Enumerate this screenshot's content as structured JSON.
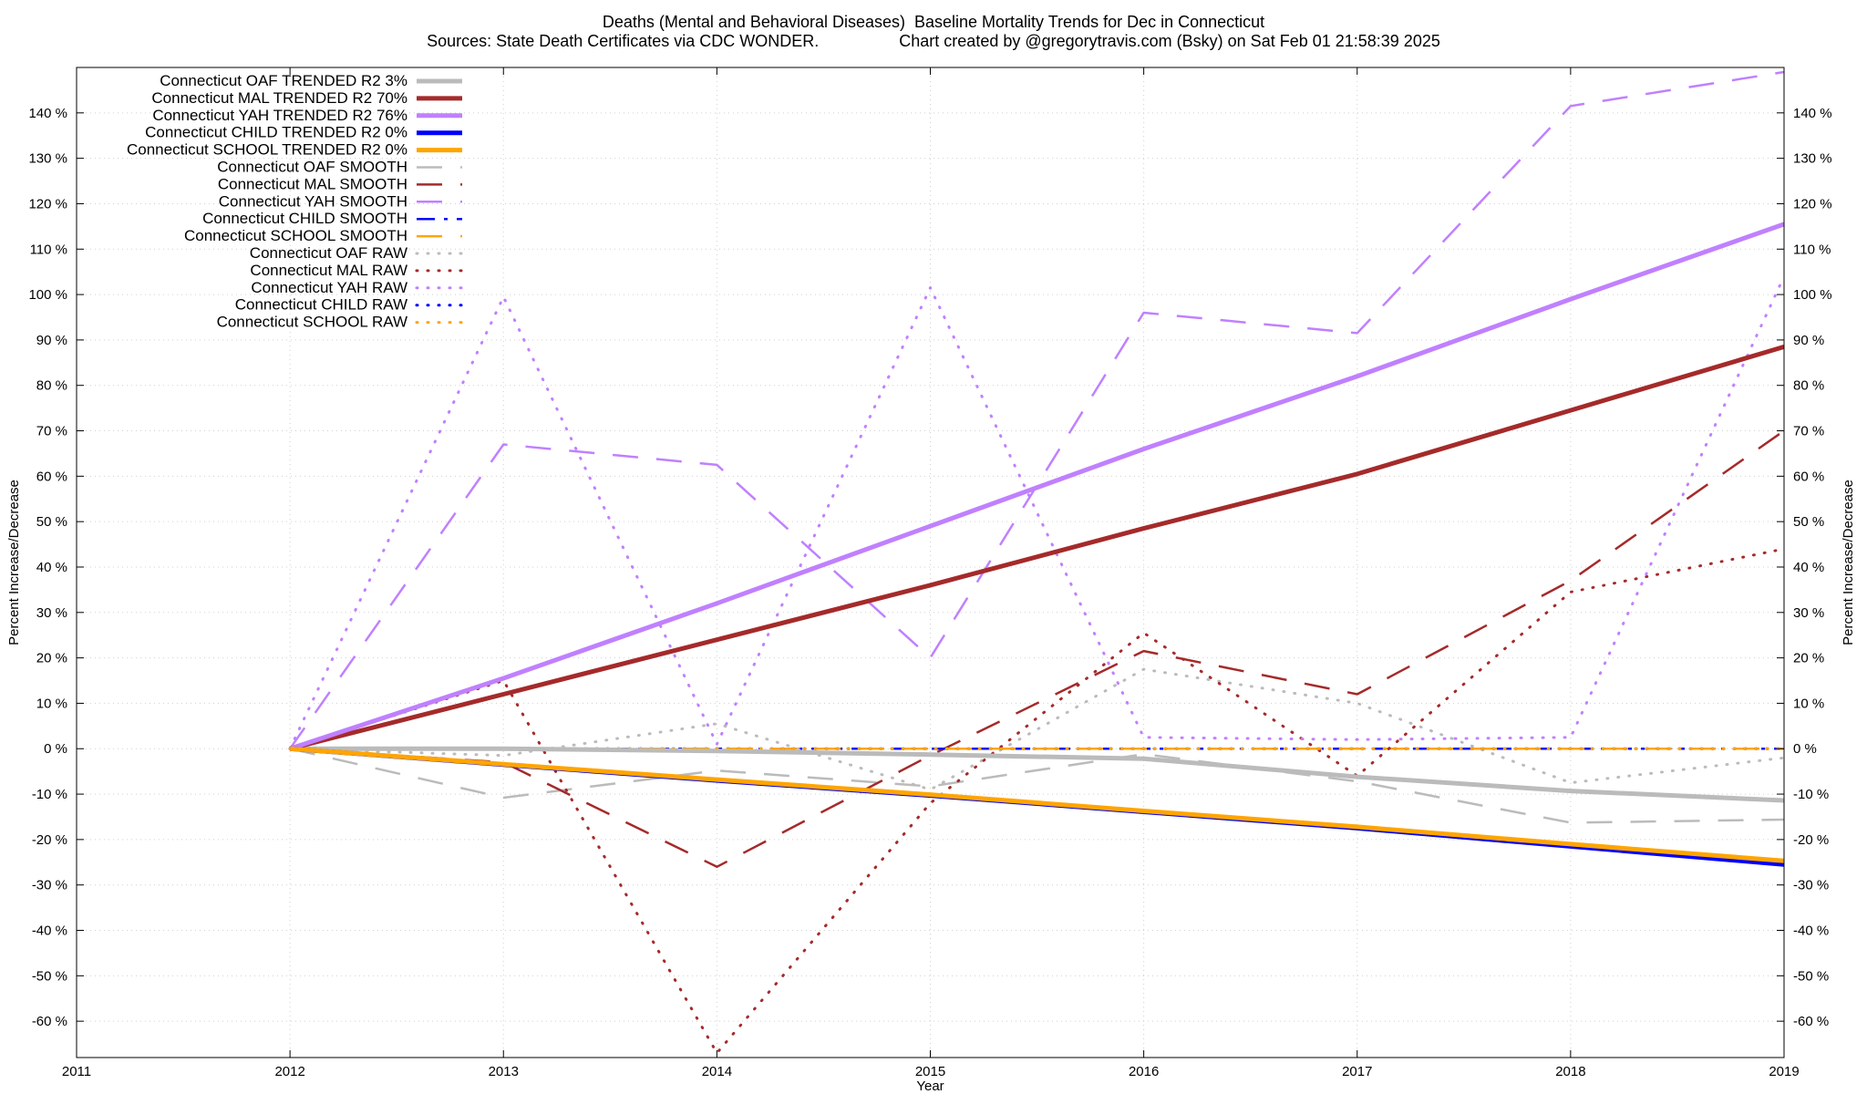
{
  "chart_data": {
    "type": "line",
    "title": "Deaths (Mental and Behavioral Diseases)  Baseline Mortality Trends for Dec in Connecticut",
    "subtitle": "Sources: State Death Certificates via CDC WONDER.",
    "credit": "Chart created by @gregorytravis.com (Bsky) on Sat Feb 01 21:58:39 2025",
    "xlabel": "Year",
    "ylabel": "Percent Increase/Decrease",
    "xlim": [
      2011,
      2019
    ],
    "ylim": [
      -68,
      150
    ],
    "x_ticks": [
      2011,
      2012,
      2013,
      2014,
      2015,
      2016,
      2017,
      2018,
      2019
    ],
    "x_tick_labels": [
      "2011",
      "2012",
      "2013",
      "2014",
      "2015",
      "2016",
      "2017",
      "2018",
      "2019"
    ],
    "y_ticks": [
      -60,
      -50,
      -40,
      -30,
      -20,
      -10,
      0,
      10,
      20,
      30,
      40,
      50,
      60,
      70,
      80,
      90,
      100,
      110,
      120,
      130,
      140
    ],
    "y_tick_labels": [
      "-60 %",
      "-50 %",
      "-40 %",
      "-30 %",
      "-20 %",
      "-10 %",
      "0 %",
      "10 %",
      "20 %",
      "30 %",
      "40 %",
      "50 %",
      "60 %",
      "70 %",
      "80 %",
      "90 %",
      "100 %",
      "110 %",
      "120 %",
      "130 %",
      "140 %"
    ],
    "grid": true,
    "legend_position": "top-left",
    "series": [
      {
        "name": "Connecticut OAF TRENDED R2  3%",
        "style": "solid",
        "color": "#bbbbbb",
        "x": [
          2012,
          2013,
          2014,
          2015,
          2016,
          2017,
          2018,
          2019
        ],
        "y": [
          0,
          0,
          -0.5,
          -1.3,
          -2.2,
          -6.2,
          -9.3,
          -11.4
        ]
      },
      {
        "name": "Connecticut MAL TRENDED R2  70%",
        "style": "solid",
        "color": "#a52a2a",
        "x": [
          2012,
          2013,
          2014,
          2015,
          2016,
          2017,
          2018,
          2019
        ],
        "y": [
          0,
          12,
          24,
          36,
          48.5,
          60.5,
          74.5,
          88.5
        ]
      },
      {
        "name": "Connecticut YAH TRENDED R2  76%",
        "style": "solid",
        "color": "#c080ff",
        "x": [
          2012,
          2013,
          2014,
          2015,
          2016,
          2017,
          2018,
          2019
        ],
        "y": [
          0,
          15.5,
          32,
          49,
          66,
          82,
          99,
          115.5
        ]
      },
      {
        "name": "Connecticut CHILD TRENDED R2   0%",
        "style": "solid",
        "color": "#0000ff",
        "x": [
          2012,
          2013,
          2014,
          2015,
          2016,
          2017,
          2018,
          2019
        ],
        "y": [
          0,
          -3.5,
          -7,
          -10.3,
          -13.9,
          -17.5,
          -21.5,
          -25.5
        ]
      },
      {
        "name": "Connecticut SCHOOL TRENDED R2   0%",
        "style": "solid",
        "color": "#ffa500",
        "x": [
          2012,
          2013,
          2014,
          2015,
          2016,
          2017,
          2018,
          2019
        ],
        "y": [
          0,
          -3.4,
          -6.8,
          -10.1,
          -13.7,
          -17.2,
          -21.0,
          -24.7
        ]
      },
      {
        "name": "Connecticut OAF SMOOTH",
        "style": "dash",
        "color": "#bbbbbb",
        "x": [
          2012,
          2013,
          2014,
          2015,
          2016,
          2017,
          2018,
          2019
        ],
        "y": [
          0,
          -10.8,
          -4.8,
          -8.3,
          -1.2,
          -7.2,
          -16.3,
          -15.6
        ]
      },
      {
        "name": "Connecticut MAL SMOOTH",
        "style": "dash",
        "color": "#a52a2a",
        "x": [
          2012,
          2013,
          2014,
          2015,
          2016,
          2017,
          2018,
          2019
        ],
        "y": [
          0,
          -3,
          -26,
          -1.5,
          21.5,
          12,
          37,
          70
        ]
      },
      {
        "name": "Connecticut YAH SMOOTH",
        "style": "dash",
        "color": "#c080ff",
        "x": [
          2012,
          2013,
          2014,
          2015,
          2016,
          2017,
          2018,
          2019
        ],
        "y": [
          0,
          67,
          62.5,
          20,
          96,
          91.5,
          141.5,
          149
        ]
      },
      {
        "name": "Connecticut CHILD SMOOTH",
        "style": "dashdot",
        "color": "#0000ff",
        "x": [
          2012,
          2013,
          2014,
          2015,
          2016,
          2017,
          2018,
          2019
        ],
        "y": [
          0,
          0,
          0,
          0,
          0,
          0,
          0,
          0
        ]
      },
      {
        "name": "Connecticut SCHOOL SMOOTH",
        "style": "dash",
        "color": "#ffa500",
        "x": [
          2012,
          2013,
          2014,
          2015,
          2016,
          2017,
          2018,
          2019
        ],
        "y": [
          0,
          0,
          0,
          0,
          0,
          0,
          0,
          0
        ]
      },
      {
        "name": "Connecticut OAF RAW",
        "style": "dot",
        "color": "#bbbbbb",
        "x": [
          2012,
          2013,
          2014,
          2015,
          2016,
          2017,
          2018,
          2019
        ],
        "y": [
          0,
          -1.5,
          5.5,
          -9,
          17.5,
          10,
          -7.5,
          -2
        ]
      },
      {
        "name": "Connecticut MAL RAW",
        "style": "dot",
        "color": "#a52a2a",
        "x": [
          2012,
          2013,
          2014,
          2015,
          2016,
          2017,
          2018,
          2019
        ],
        "y": [
          0,
          15,
          -67,
          -12,
          25.5,
          -6,
          34.5,
          44
        ]
      },
      {
        "name": "Connecticut YAH RAW",
        "style": "dot",
        "color": "#c080ff",
        "x": [
          2012,
          2013,
          2014,
          2015,
          2016,
          2017,
          2018,
          2019
        ],
        "y": [
          0,
          99.5,
          1,
          101.5,
          2.5,
          2,
          2.5,
          104
        ]
      },
      {
        "name": "Connecticut CHILD RAW",
        "style": "dot",
        "color": "#0000ff",
        "x": [
          2012,
          2013,
          2014,
          2015,
          2016,
          2017,
          2018,
          2019
        ],
        "y": [
          0,
          0,
          0,
          0,
          0,
          0,
          0,
          0
        ]
      },
      {
        "name": "Connecticut SCHOOL RAW",
        "style": "dot",
        "color": "#ffa500",
        "x": [
          2012,
          2013,
          2014,
          2015,
          2016,
          2017,
          2018,
          2019
        ],
        "y": [
          0,
          0,
          0,
          0,
          0,
          0,
          0,
          0
        ]
      }
    ]
  }
}
